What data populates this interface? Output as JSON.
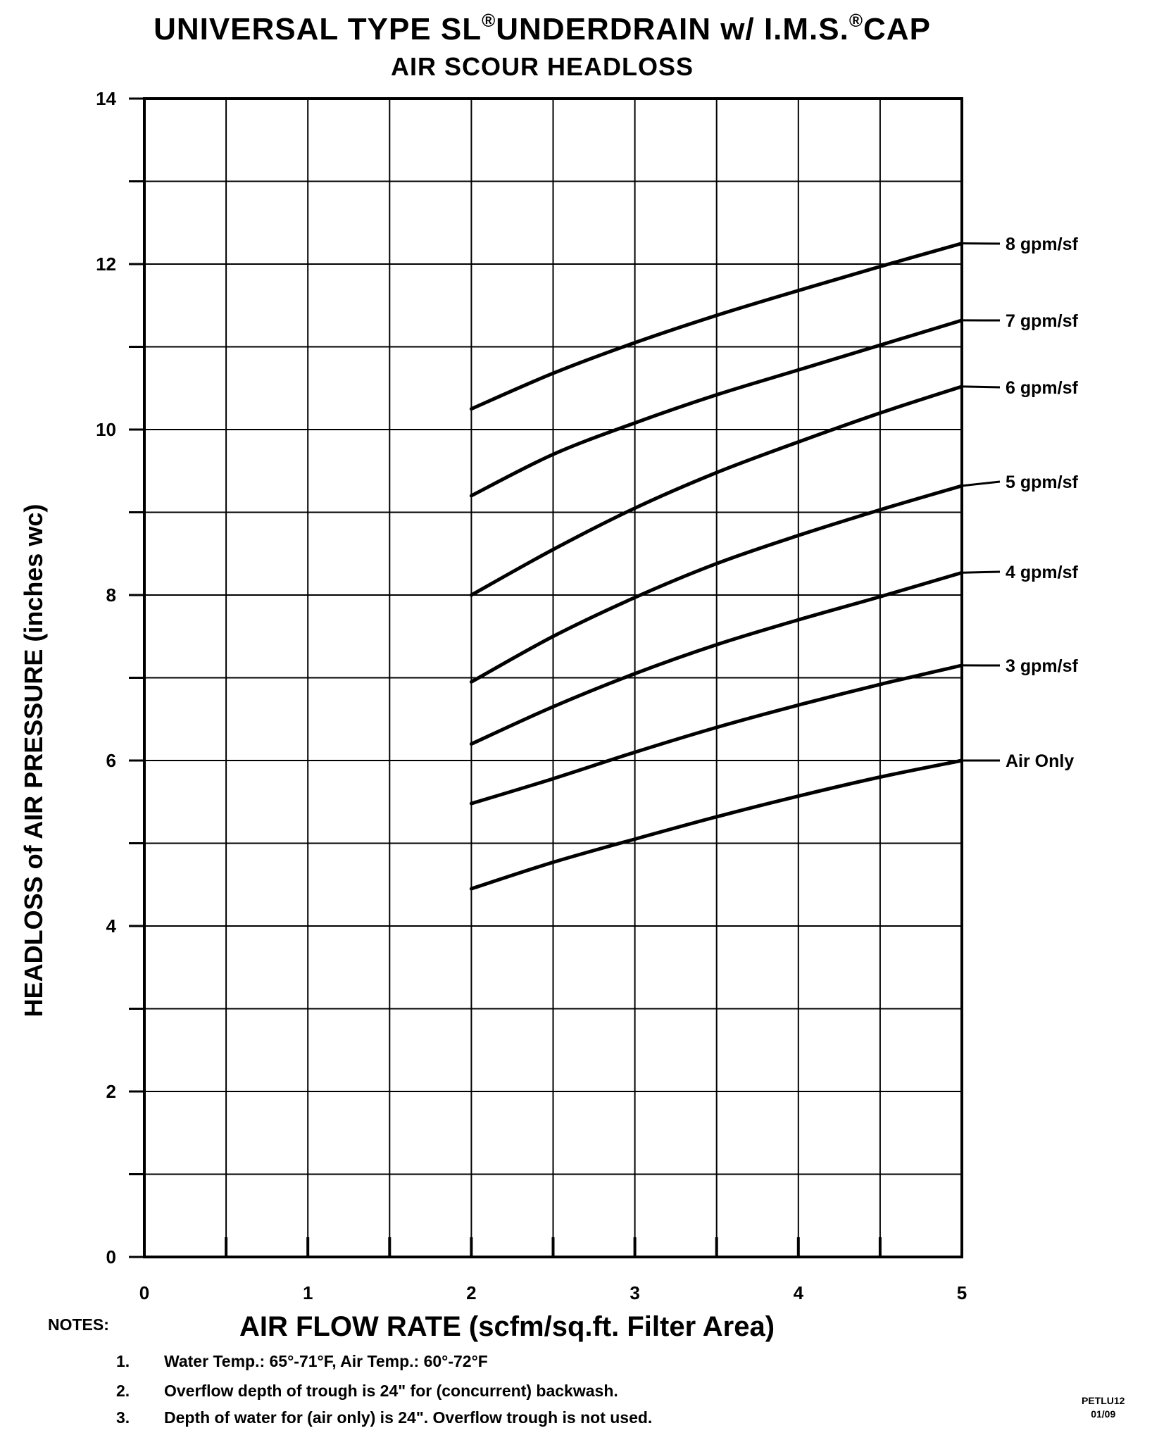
{
  "header": {
    "title_part1": "UNIVERSAL TYPE SL",
    "reg_mark": "®",
    "title_part2": "UNDERDRAIN w/ I.M.S.",
    "title_part3": "CAP",
    "subtitle": "AIR SCOUR HEADLOSS"
  },
  "chart_data": {
    "type": "line",
    "title": "UNIVERSAL TYPE SL® UNDERDRAIN w/ I.M.S.® CAP",
    "subtitle": "AIR SCOUR HEADLOSS",
    "xlabel": "AIR FLOW RATE (scfm/sq.ft. Filter Area)",
    "ylabel": "HEADLOSS of AIR PRESSURE (inches wc)",
    "xlim": [
      0,
      5
    ],
    "ylim": [
      0,
      14
    ],
    "x_ticks": [
      "0",
      "1",
      "2",
      "3",
      "4",
      "5"
    ],
    "y_ticks": [
      "0",
      "2",
      "4",
      "6",
      "8",
      "10",
      "12",
      "14"
    ],
    "grid": true,
    "legend": "right (labels at line ends)",
    "x": [
      2.0,
      2.5,
      3.0,
      3.5,
      4.0,
      4.5,
      5.0
    ],
    "series": [
      {
        "name": "8 gpm/sf",
        "values": [
          10.25,
          10.68,
          11.05,
          11.38,
          11.68,
          11.97,
          12.25
        ]
      },
      {
        "name": "7 gpm/sf",
        "values": [
          9.2,
          9.7,
          10.08,
          10.42,
          10.72,
          11.02,
          11.32
        ]
      },
      {
        "name": "6 gpm/sf",
        "values": [
          8.0,
          8.55,
          9.05,
          9.48,
          9.85,
          10.2,
          10.52
        ]
      },
      {
        "name": "5 gpm/sf",
        "values": [
          6.95,
          7.5,
          7.97,
          8.38,
          8.72,
          9.03,
          9.32
        ]
      },
      {
        "name": "4 gpm/sf",
        "values": [
          6.2,
          6.65,
          7.05,
          7.4,
          7.7,
          7.98,
          8.27
        ]
      },
      {
        "name": "3 gpm/sf",
        "values": [
          5.48,
          5.78,
          6.1,
          6.4,
          6.67,
          6.92,
          7.15
        ]
      },
      {
        "name": "Air Only",
        "values": [
          4.45,
          4.77,
          5.05,
          5.32,
          5.57,
          5.8,
          6.0
        ]
      }
    ]
  },
  "axes": {
    "ylabel": "HEADLOSS of AIR PRESSURE (inches wc)",
    "xlabel": "AIR FLOW RATE (scfm/sq.ft. Filter Area)"
  },
  "notes": {
    "title": "NOTES:",
    "items": [
      {
        "num": "1.",
        "text": "Water Temp.: 65°-71°F, Air Temp.: 60°-72°F"
      },
      {
        "num": "2.",
        "text": "Overflow depth of trough is 24\" for (concurrent) backwash."
      },
      {
        "num": "3.",
        "text": "Depth of water for (air only) is 24\".  Overflow trough is not used."
      }
    ]
  },
  "footer": {
    "doc_id_line1": "PETLU12",
    "doc_id_line2": "01/09"
  },
  "colors": {
    "ink": "#000000",
    "background": "#ffffff"
  }
}
